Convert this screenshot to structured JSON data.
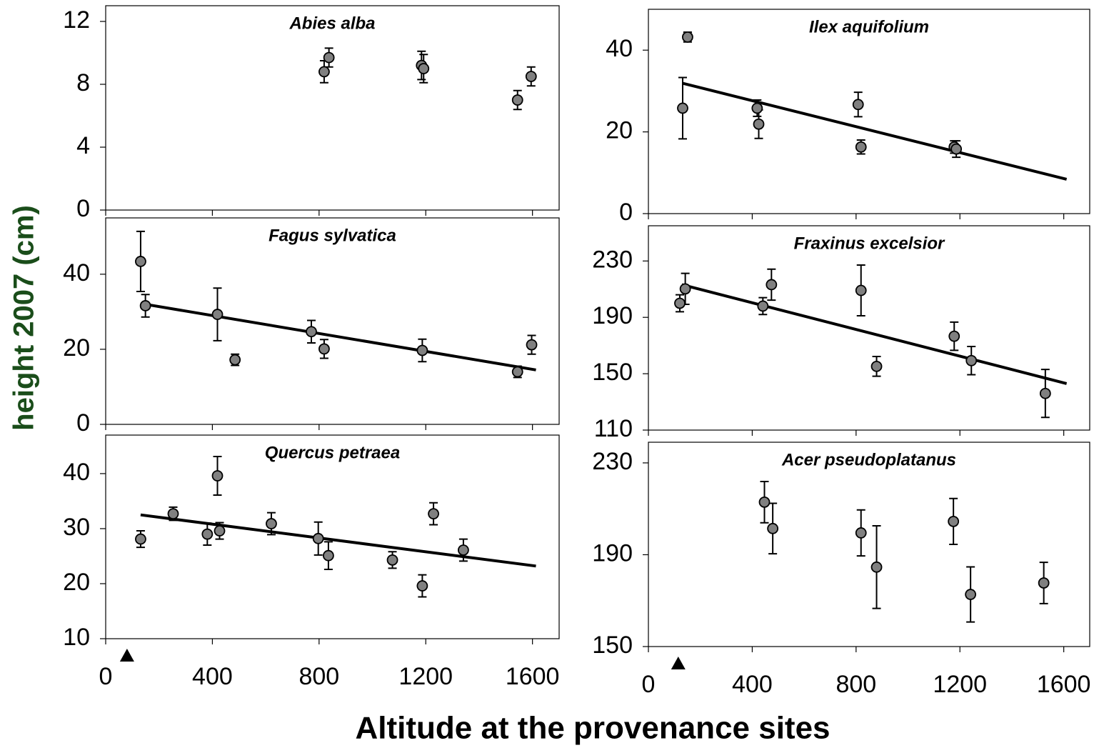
{
  "ylabel": "height 2007 (cm)",
  "xlabel": "Altitude at the provenance sites",
  "chart_data": [
    {
      "type": "scatter",
      "title": "Abies alba",
      "xlim": [
        0,
        1700
      ],
      "ylim": [
        0,
        13
      ],
      "xticks": [
        0,
        400,
        800,
        1200,
        1600
      ],
      "yticks": [
        0,
        4,
        8,
        12
      ],
      "xtick_labels": false,
      "color": "#808080",
      "x": [
        819,
        837,
        1184,
        1192,
        1544,
        1595
      ],
      "values": [
        8.8,
        9.7,
        9.2,
        9.0,
        7.0,
        8.5
      ],
      "errors": [
        0.7,
        0.6,
        0.9,
        0.9,
        0.6,
        0.6
      ]
    },
    {
      "type": "scatter",
      "title": "Fagus sylvatica",
      "xlim": [
        0,
        1700
      ],
      "ylim": [
        0,
        55
      ],
      "xticks": [
        0,
        400,
        800,
        1200,
        1600
      ],
      "yticks": [
        0,
        20,
        40
      ],
      "xtick_labels": false,
      "color": "#808080",
      "x": [
        131,
        149,
        419,
        485,
        771,
        819,
        1187,
        1544,
        1597
      ],
      "values": [
        43.4,
        31.6,
        29.3,
        17.2,
        24.7,
        20.1,
        19.7,
        14,
        21.2
      ],
      "errors": [
        8,
        3,
        7,
        1.5,
        3,
        2.5,
        3,
        1.5,
        2.5
      ],
      "trendline": {
        "x": [
          131,
          1613
        ],
        "y": [
          32.2,
          14.5
        ]
      }
    },
    {
      "type": "scatter",
      "title": "Quercus petraea",
      "xlim": [
        0,
        1700
      ],
      "ylim": [
        10,
        47
      ],
      "xticks": [
        0,
        400,
        800,
        1200,
        1600
      ],
      "yticks": [
        10,
        20,
        30,
        40
      ],
      "xtick_labels": true,
      "color": "#808080",
      "site_marker": 80,
      "x": [
        131,
        253,
        381,
        419,
        427,
        621,
        797,
        835,
        1075,
        1187,
        1229,
        1341
      ],
      "values": [
        28.1,
        32.7,
        29.0,
        39.6,
        29.6,
        30.9,
        28.2,
        25.1,
        24.3,
        19.6,
        32.7,
        26.1
      ],
      "errors": [
        1.5,
        1.2,
        2,
        3.5,
        1.5,
        2,
        3,
        2.5,
        1.5,
        2,
        2,
        2
      ],
      "trendline": {
        "x": [
          131,
          1613
        ],
        "y": [
          32.5,
          23.2
        ]
      }
    },
    {
      "type": "scatter",
      "title": "Ilex aquifolium",
      "xlim": [
        0,
        1700
      ],
      "ylim": [
        0,
        50
      ],
      "xticks": [
        0,
        400,
        800,
        1200,
        1600
      ],
      "yticks": [
        0,
        20,
        40
      ],
      "xtick_labels": false,
      "color": "#808080",
      "x": [
        151,
        132,
        419,
        425,
        808,
        819,
        1178,
        1186
      ],
      "values": [
        43.2,
        25.8,
        25.8,
        21.9,
        26.7,
        16.3,
        16.3,
        15.8
      ],
      "errors": [
        1.2,
        7.5,
        2,
        3.5,
        3,
        1.7,
        1.5,
        2
      ],
      "trendline": {
        "x": [
          132,
          1611
        ],
        "y": [
          31.9,
          8.4
        ]
      }
    },
    {
      "type": "scatter",
      "title": "Fraxinus excelsior",
      "xlim": [
        0,
        1700
      ],
      "ylim": [
        110,
        255
      ],
      "xticks": [
        0,
        400,
        800,
        1200,
        1600
      ],
      "yticks": [
        110,
        150,
        190,
        230
      ],
      "xtick_labels": false,
      "color": "#808080",
      "x": [
        121,
        142,
        441,
        474,
        819,
        879,
        1178,
        1244,
        1529
      ],
      "values": [
        200,
        210.2,
        198,
        213.2,
        209.1,
        155.2,
        176.6,
        159.3,
        136
      ],
      "errors": [
        6,
        11,
        6,
        11,
        18,
        7,
        10,
        10,
        17
      ],
      "trendline": {
        "x": [
          129,
          1611
        ],
        "y": [
          213.2,
          143
        ]
      }
    },
    {
      "type": "scatter",
      "title": "Acer pseudoplatanus",
      "xlim": [
        0,
        1700
      ],
      "ylim": [
        150,
        239
      ],
      "xticks": [
        0,
        400,
        800,
        1200,
        1600
      ],
      "yticks": [
        150,
        190,
        230
      ],
      "xtick_labels": true,
      "color": "#808080",
      "site_marker": 115,
      "x": [
        447,
        479,
        819,
        879,
        1175,
        1241,
        1523
      ],
      "values": [
        212.9,
        201.4,
        199.5,
        184.6,
        204.5,
        172.7,
        177.7
      ],
      "errors": [
        9,
        11,
        10,
        18,
        10,
        12,
        9
      ]
    }
  ]
}
